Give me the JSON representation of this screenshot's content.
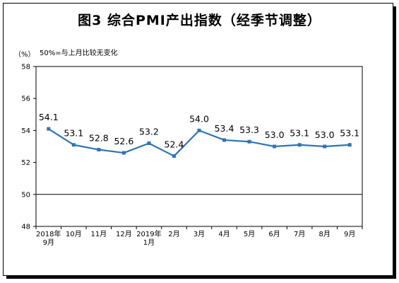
{
  "chart_data": {
    "type": "line",
    "title": "图3 综合PMI产出指数（经季节调整）",
    "y_unit_label": "（%）",
    "annotation": "50%=与上月比较无变化",
    "categories": [
      [
        "2018年",
        "9月"
      ],
      [
        "10月"
      ],
      [
        "11月"
      ],
      [
        "12月"
      ],
      [
        "2019年",
        "1月"
      ],
      [
        "2月"
      ],
      [
        "3月"
      ],
      [
        "4月"
      ],
      [
        "5月"
      ],
      [
        "6月"
      ],
      [
        "7月"
      ],
      [
        "8月"
      ],
      [
        "9月"
      ]
    ],
    "series": [
      {
        "values": [
          54.1,
          53.1,
          52.8,
          52.6,
          53.2,
          52.4,
          54.0,
          53.4,
          53.3,
          53.0,
          53.1,
          53.0,
          53.1
        ]
      }
    ],
    "data_labels": [
      "54.1",
      "53.1",
      "52.8",
      "52.6",
      "53.2",
      "52.4",
      "54.0",
      "53.4",
      "53.3",
      "53.0",
      "53.1",
      "53.0",
      "53.1"
    ],
    "y_ticks": [
      "48",
      "50",
      "52",
      "54",
      "56",
      "58"
    ],
    "ylim": [
      48,
      58
    ],
    "reference_line": 50,
    "grid": false,
    "line_color": "#2e75b6"
  }
}
